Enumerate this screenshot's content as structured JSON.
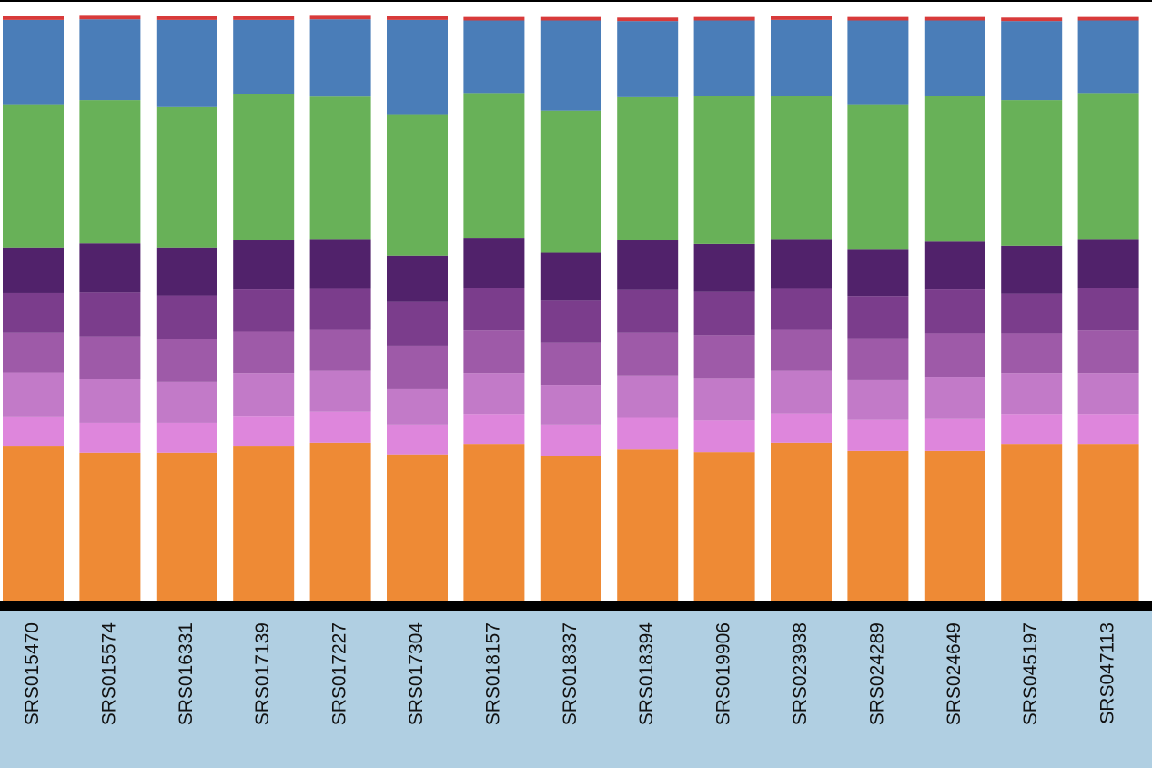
{
  "chart_data": {
    "type": "stacked_bar",
    "categories": [
      "SRS015470",
      "SRS015574",
      "SRS016331",
      "SRS017139",
      "SRS017227",
      "SRS017304",
      "SRS018157",
      "SRS018337",
      "SRS018394",
      "SRS019906",
      "SRS023938",
      "SRS024289",
      "SRS024649",
      "SRS045197",
      "SRS047113"
    ],
    "ylim": [
      0,
      100
    ],
    "series": [
      {
        "color": "#ee8a35",
        "values": [
          26.7,
          25.5,
          25.5,
          26.7,
          27.2,
          25.2,
          27.0,
          25.0,
          26.2,
          25.6,
          27.2,
          25.8,
          25.8,
          27.0,
          27.0
        ]
      },
      {
        "color": "#de86dc",
        "values": [
          5.0,
          5.1,
          5.1,
          5.1,
          5.3,
          5.1,
          5.1,
          5.3,
          5.4,
          5.4,
          5.0,
          5.3,
          5.6,
          5.1,
          5.1
        ]
      },
      {
        "color": "#c27ac8",
        "values": [
          7.5,
          7.5,
          7.0,
          7.3,
          7.0,
          6.2,
          7.0,
          6.8,
          7.1,
          7.3,
          7.3,
          6.8,
          7.1,
          7.0,
          7.0
        ]
      },
      {
        "color": "#9e5aa8",
        "values": [
          6.8,
          7.3,
          7.3,
          7.1,
          7.0,
          7.3,
          7.3,
          7.2,
          7.3,
          7.3,
          7.0,
          7.2,
          7.4,
          6.8,
          7.3
        ]
      },
      {
        "color": "#7b3d8c",
        "values": [
          6.8,
          7.5,
          7.5,
          7.2,
          7.0,
          7.5,
          7.3,
          7.2,
          7.3,
          7.4,
          7.0,
          7.2,
          7.5,
          6.8,
          7.3
        ]
      },
      {
        "color": "#51226b",
        "values": [
          7.8,
          8.4,
          8.2,
          8.4,
          8.4,
          7.9,
          8.4,
          8.2,
          8.5,
          8.2,
          8.4,
          7.9,
          8.2,
          8.2,
          8.2
        ]
      },
      {
        "color": "#68b158",
        "values": [
          24.4,
          24.4,
          23.9,
          25.0,
          24.4,
          24.1,
          24.8,
          24.2,
          24.4,
          25.2,
          24.5,
          24.8,
          24.8,
          24.8,
          25.0
        ]
      },
      {
        "color": "#4a7db8",
        "values": [
          14.4,
          13.8,
          14.9,
          12.6,
          13.2,
          16.1,
          12.4,
          15.4,
          13.0,
          12.9,
          13.0,
          14.3,
          12.9,
          13.5,
          12.4
        ]
      },
      {
        "color": "#d83a3a",
        "values": [
          0.6,
          0.6,
          0.6,
          0.6,
          0.6,
          0.6,
          0.6,
          0.6,
          0.6,
          0.6,
          0.6,
          0.6,
          0.6,
          0.6,
          0.6
        ]
      }
    ]
  }
}
